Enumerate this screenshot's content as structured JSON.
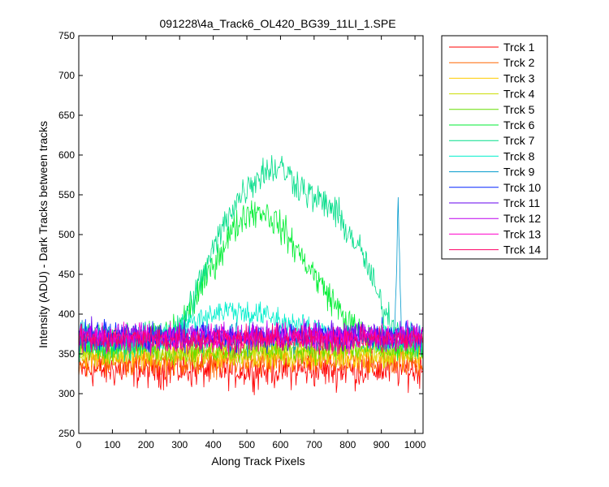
{
  "chart_data": {
    "type": "line",
    "title": "091228\\4a_Track6_OL420_BG39_11LI_1.SPE",
    "xlabel": "Along Track Pixels",
    "ylabel": "Intensity (ADU) - Dark Tracks between tracks",
    "xlim": [
      0,
      1024
    ],
    "ylim": [
      250,
      750
    ],
    "xticks": [
      0,
      100,
      200,
      300,
      400,
      500,
      600,
      700,
      800,
      900,
      1000
    ],
    "yticks": [
      250,
      300,
      350,
      400,
      450,
      500,
      550,
      600,
      650,
      700,
      750
    ],
    "grid": false,
    "legend_position": "outside-right",
    "x": [
      0,
      50,
      100,
      150,
      200,
      250,
      300,
      350,
      400,
      450,
      500,
      550,
      600,
      650,
      700,
      750,
      800,
      850,
      900,
      940,
      950,
      960,
      1000,
      1024
    ],
    "series": [
      {
        "name": "Trck 1",
        "color": "#ff0000",
        "noise": 16,
        "values": [
          330,
          330,
          330,
          330,
          330,
          330,
          330,
          330,
          330,
          330,
          330,
          330,
          330,
          330,
          330,
          330,
          330,
          330,
          330,
          330,
          330,
          330,
          330,
          330
        ]
      },
      {
        "name": "Trck 2",
        "color": "#ff6600",
        "noise": 13,
        "values": [
          340,
          340,
          340,
          340,
          340,
          340,
          340,
          340,
          340,
          340,
          340,
          340,
          340,
          340,
          340,
          340,
          340,
          340,
          340,
          340,
          340,
          340,
          340,
          340
        ]
      },
      {
        "name": "Trck 3",
        "color": "#ffcc00",
        "noise": 12,
        "values": [
          348,
          348,
          348,
          348,
          348,
          348,
          348,
          348,
          348,
          348,
          348,
          348,
          348,
          348,
          348,
          348,
          348,
          348,
          348,
          348,
          348,
          348,
          348,
          348
        ]
      },
      {
        "name": "Trck 4",
        "color": "#ccdd00",
        "noise": 12,
        "values": [
          352,
          352,
          352,
          352,
          352,
          352,
          352,
          352,
          352,
          352,
          352,
          352,
          352,
          352,
          352,
          352,
          352,
          352,
          352,
          352,
          352,
          352,
          352,
          352
        ]
      },
      {
        "name": "Trck 5",
        "color": "#66dd00",
        "noise": 12,
        "values": [
          356,
          356,
          356,
          356,
          356,
          356,
          356,
          356,
          356,
          356,
          356,
          356,
          356,
          356,
          356,
          356,
          356,
          356,
          356,
          356,
          356,
          356,
          356,
          356
        ]
      },
      {
        "name": "Trck 6",
        "color": "#00ee33",
        "noise": 14,
        "values": [
          365,
          365,
          365,
          365,
          368,
          375,
          385,
          420,
          462,
          500,
          528,
          530,
          510,
          480,
          450,
          420,
          390,
          372,
          366,
          365,
          365,
          365,
          365,
          365
        ]
      },
      {
        "name": "Trck 7",
        "color": "#00dd88",
        "noise": 15,
        "values": [
          362,
          362,
          362,
          362,
          365,
          370,
          380,
          430,
          480,
          530,
          560,
          580,
          585,
          565,
          545,
          535,
          505,
          470,
          410,
          385,
          380,
          375,
          365,
          365
        ]
      },
      {
        "name": "Trck 8",
        "color": "#00eecc",
        "noise": 12,
        "values": [
          368,
          368,
          368,
          368,
          368,
          372,
          380,
          392,
          402,
          405,
          402,
          398,
          392,
          386,
          380,
          376,
          372,
          370,
          368,
          368,
          368,
          368,
          368,
          368
        ]
      },
      {
        "name": "Trck 9",
        "color": "#0099cc",
        "noise": 12,
        "values": [
          370,
          370,
          370,
          370,
          370,
          370,
          370,
          370,
          370,
          370,
          370,
          370,
          370,
          370,
          370,
          370,
          370,
          370,
          370,
          372,
          540,
          375,
          370,
          370
        ]
      },
      {
        "name": "Trck 10",
        "color": "#0022ff",
        "noise": 12,
        "values": [
          372,
          372,
          372,
          372,
          372,
          372,
          372,
          372,
          372,
          372,
          372,
          372,
          372,
          372,
          372,
          372,
          372,
          372,
          372,
          372,
          372,
          372,
          372,
          372
        ]
      },
      {
        "name": "Trck 11",
        "color": "#6600ee",
        "noise": 12,
        "values": [
          373,
          373,
          373,
          373,
          373,
          373,
          373,
          373,
          373,
          373,
          373,
          373,
          373,
          373,
          373,
          373,
          373,
          373,
          373,
          373,
          373,
          373,
          373,
          373
        ]
      },
      {
        "name": "Trck 12",
        "color": "#bb00ee",
        "noise": 12,
        "values": [
          372,
          372,
          372,
          372,
          372,
          372,
          372,
          372,
          372,
          372,
          372,
          372,
          372,
          372,
          372,
          372,
          372,
          372,
          372,
          372,
          372,
          372,
          372,
          372
        ]
      },
      {
        "name": "Trck 13",
        "color": "#ff00cc",
        "noise": 12,
        "values": [
          370,
          370,
          370,
          370,
          370,
          370,
          370,
          370,
          370,
          370,
          370,
          370,
          370,
          370,
          370,
          370,
          370,
          370,
          370,
          370,
          370,
          370,
          370,
          370
        ]
      },
      {
        "name": "Trck 14",
        "color": "#ff0066",
        "noise": 12,
        "values": [
          368,
          368,
          368,
          368,
          368,
          368,
          368,
          368,
          368,
          368,
          368,
          368,
          368,
          368,
          368,
          368,
          368,
          368,
          368,
          368,
          368,
          368,
          368,
          368
        ]
      }
    ]
  }
}
